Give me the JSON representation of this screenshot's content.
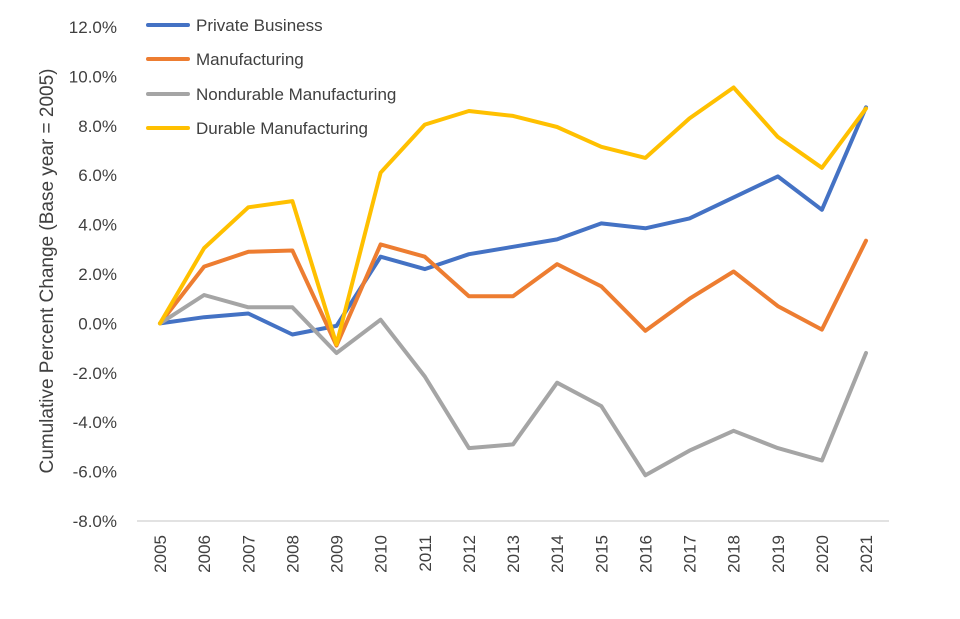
{
  "chart_data": {
    "type": "line",
    "title": "",
    "xlabel": "",
    "ylabel": "Cumulative Percent Change (Base year = 2005)",
    "categories": [
      "2005",
      "2006",
      "2007",
      "2008",
      "2009",
      "2010",
      "2011",
      "2012",
      "2013",
      "2014",
      "2015",
      "2016",
      "2017",
      "2018",
      "2019",
      "2020",
      "2021"
    ],
    "ylim": [
      -8.0,
      12.0
    ],
    "yticks": [
      "12.0%",
      "10.0%",
      "8.0%",
      "6.0%",
      "4.0%",
      "2.0%",
      "0.0%",
      "-2.0%",
      "-4.0%",
      "-6.0%",
      "-8.0%"
    ],
    "ytick_values": [
      12,
      10,
      8,
      6,
      4,
      2,
      0,
      -2,
      -4,
      -6,
      -8
    ],
    "grid": false,
    "legend_position": "top-left",
    "series": [
      {
        "name": "Private Business",
        "color": "#4472C4",
        "values": [
          0.0,
          0.25,
          0.4,
          -0.45,
          -0.1,
          2.7,
          2.2,
          2.8,
          3.1,
          3.4,
          4.05,
          3.85,
          4.25,
          5.1,
          5.95,
          4.6,
          8.75
        ]
      },
      {
        "name": "Manufacturing",
        "color": "#ED7D31",
        "values": [
          0.0,
          2.3,
          2.9,
          2.95,
          -0.9,
          3.2,
          2.7,
          1.1,
          1.1,
          2.4,
          1.5,
          -0.3,
          1.0,
          2.1,
          0.7,
          -0.25,
          3.35
        ]
      },
      {
        "name": "Nondurable Manufacturing",
        "color": "#A5A5A5",
        "values": [
          0.0,
          1.15,
          0.65,
          0.65,
          -1.2,
          0.15,
          -2.15,
          -5.05,
          -4.9,
          -2.4,
          -3.35,
          -6.15,
          -5.15,
          -4.35,
          -5.05,
          -5.55,
          -1.2
        ]
      },
      {
        "name": "Durable Manufacturing",
        "color": "#FFC000",
        "values": [
          0.0,
          3.05,
          4.7,
          4.95,
          -0.85,
          6.1,
          8.05,
          8.6,
          8.4,
          7.95,
          7.15,
          6.7,
          8.3,
          9.55,
          7.55,
          6.3,
          8.7
        ]
      }
    ]
  }
}
